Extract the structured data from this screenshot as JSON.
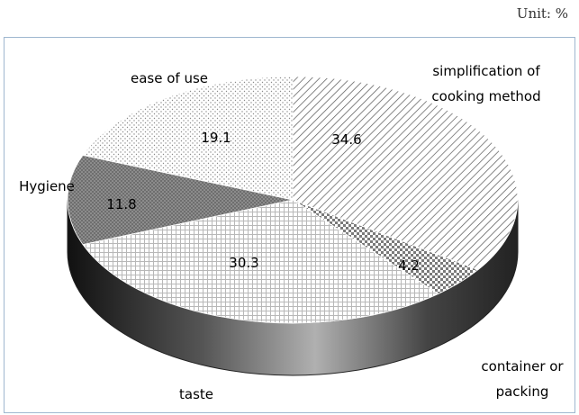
{
  "unit_label": "Unit: %",
  "chart_data": {
    "type": "pie",
    "title": "",
    "slices": [
      {
        "label": "simplification of\ncooking method",
        "value": 34.6,
        "pattern": "diagonal"
      },
      {
        "label": "container or\npacking",
        "value": 4.2,
        "pattern": "checker"
      },
      {
        "label": "taste",
        "value": 30.3,
        "pattern": "grid"
      },
      {
        "label": "Hygiene",
        "value": 11.8,
        "pattern": "dark-dots"
      },
      {
        "label": "ease of use",
        "value": 19.1,
        "pattern": "dots"
      }
    ]
  }
}
